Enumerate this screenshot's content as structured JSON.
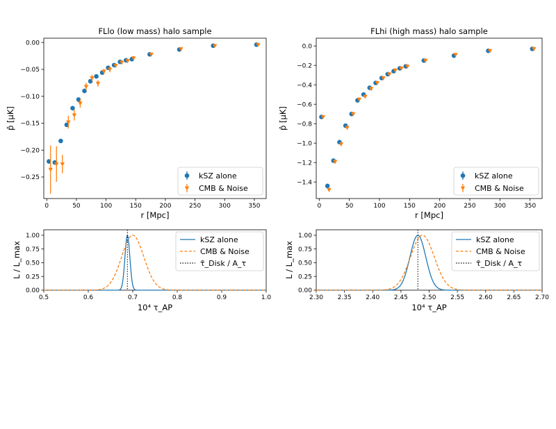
{
  "colors": {
    "blue": "#1f77b4",
    "orange": "#ff7f0e",
    "axis": "#000000"
  },
  "chart_data": [
    {
      "id": "top_left",
      "type": "scatter",
      "title": "FLlo (low mass) halo sample",
      "xlabel": "r [Mpc]",
      "ylabel": "p̂ [μK]",
      "xlim": [
        -5,
        370
      ],
      "ylim": [
        -0.29,
        0.008
      ],
      "xticks": [
        0,
        50,
        100,
        150,
        200,
        250,
        300,
        350
      ],
      "yticks": [
        0.0,
        -0.05,
        -0.1,
        -0.15,
        -0.2,
        -0.25
      ],
      "ytick_labels": [
        "0.00",
        "−0.05",
        "−0.10",
        "−0.15",
        "−0.20",
        "−0.25"
      ],
      "legend": {
        "position": "lower-right",
        "entries": [
          "kSZ alone",
          "CMB & Noise"
        ]
      },
      "series": [
        {
          "name": "kSZ alone",
          "color": "#1f77b4",
          "marker": "circle",
          "x": [
            5,
            15,
            25,
            35,
            45,
            55,
            65,
            75,
            85,
            95,
            105,
            115,
            125,
            135,
            145,
            175,
            225,
            282,
            355
          ],
          "y": [
            -0.221,
            -0.223,
            -0.183,
            -0.153,
            -0.122,
            -0.106,
            -0.09,
            -0.072,
            -0.063,
            -0.056,
            -0.047,
            -0.042,
            -0.036,
            -0.033,
            -0.031,
            -0.022,
            -0.013,
            -0.006,
            -0.004
          ],
          "err": [
            0.002,
            0.002,
            0.002,
            0.002,
            0.002,
            0.002,
            0.002,
            0.002,
            0.002,
            0.002,
            0.002,
            0.002,
            0.002,
            0.002,
            0.002,
            0.002,
            0.002,
            0.002,
            0.002
          ]
        },
        {
          "name": "CMB & Noise",
          "color": "#ff7f0e",
          "marker": "triangle-down",
          "x": [
            5,
            15,
            25,
            35,
            45,
            55,
            65,
            75,
            85,
            95,
            105,
            115,
            125,
            135,
            145,
            175,
            225,
            282,
            355
          ],
          "y": [
            -0.236,
            -0.226,
            -0.226,
            -0.148,
            -0.135,
            -0.113,
            -0.082,
            -0.066,
            -0.076,
            -0.054,
            -0.05,
            -0.043,
            -0.037,
            -0.034,
            -0.029,
            -0.022,
            -0.012,
            -0.006,
            -0.004
          ],
          "err": [
            0.045,
            0.033,
            0.017,
            0.012,
            0.01,
            0.008,
            0.007,
            0.006,
            0.006,
            0.005,
            0.005,
            0.004,
            0.004,
            0.004,
            0.004,
            0.003,
            0.003,
            0.002,
            0.002
          ]
        }
      ]
    },
    {
      "id": "top_right",
      "type": "scatter",
      "title": "FLhi (high mass) halo sample",
      "xlabel": "r [Mpc]",
      "ylabel": "p̂ [μK]",
      "xlim": [
        -5,
        370
      ],
      "ylim": [
        -1.57,
        0.08
      ],
      "xticks": [
        0,
        50,
        100,
        150,
        200,
        250,
        300,
        350
      ],
      "yticks": [
        0.0,
        -0.2,
        -0.4,
        -0.6,
        -0.8,
        -1.0,
        -1.2,
        -1.4
      ],
      "ytick_labels": [
        "0.0",
        "−0.2",
        "−0.4",
        "−0.6",
        "−0.8",
        "−1.0",
        "−1.2",
        "−1.4"
      ],
      "legend": {
        "position": "lower-right",
        "entries": [
          "kSZ alone",
          "CMB & Noise"
        ]
      },
      "series": [
        {
          "name": "kSZ alone",
          "color": "#1f77b4",
          "marker": "circle",
          "x": [
            5,
            15,
            25,
            35,
            45,
            55,
            65,
            75,
            85,
            95,
            105,
            115,
            125,
            135,
            145,
            175,
            225,
            282,
            355
          ],
          "y": [
            -0.73,
            -1.44,
            -1.18,
            -0.99,
            -0.82,
            -0.7,
            -0.56,
            -0.5,
            -0.43,
            -0.38,
            -0.33,
            -0.29,
            -0.26,
            -0.23,
            -0.21,
            -0.15,
            -0.1,
            -0.05,
            -0.03
          ],
          "err": [
            0.01,
            0.01,
            0.01,
            0.01,
            0.01,
            0.01,
            0.01,
            0.01,
            0.01,
            0.01,
            0.01,
            0.01,
            0.01,
            0.01,
            0.01,
            0.01,
            0.01,
            0.01,
            0.01
          ]
        },
        {
          "name": "CMB & Noise",
          "color": "#ff7f0e",
          "marker": "triangle-down",
          "x": [
            5,
            15,
            25,
            35,
            45,
            55,
            65,
            75,
            85,
            95,
            105,
            115,
            125,
            135,
            145,
            175,
            225,
            282,
            355
          ],
          "y": [
            -0.73,
            -1.48,
            -1.19,
            -1.01,
            -0.84,
            -0.7,
            -0.55,
            -0.52,
            -0.44,
            -0.38,
            -0.33,
            -0.29,
            -0.25,
            -0.23,
            -0.21,
            -0.15,
            -0.09,
            -0.05,
            -0.03
          ],
          "err": [
            0.02,
            0.02,
            0.02,
            0.02,
            0.02,
            0.02,
            0.02,
            0.02,
            0.02,
            0.02,
            0.02,
            0.02,
            0.02,
            0.02,
            0.02,
            0.02,
            0.02,
            0.02,
            0.02
          ]
        }
      ]
    },
    {
      "id": "bottom_left",
      "type": "line",
      "xlabel": "10⁴ τ_AP",
      "ylabel": "L / L_max",
      "xlim": [
        0.5,
        1.0
      ],
      "ylim": [
        0,
        1.1
      ],
      "xticks": [
        0.5,
        0.6,
        0.7,
        0.8,
        0.9,
        1.0
      ],
      "xtick_labels": [
        "0.5",
        "0.6",
        "0.7",
        "0.8",
        "0.9",
        "1.0"
      ],
      "yticks": [
        0.0,
        0.25,
        0.5,
        0.75,
        1.0
      ],
      "ytick_labels": [
        "0.00",
        "0.25",
        "0.50",
        "0.75",
        "1.00"
      ],
      "legend": {
        "position": "top-right",
        "entries": [
          "kSZ alone",
          "CMB & Noise",
          "τ̄_Disk / A_τ"
        ]
      },
      "series": [
        {
          "name": "kSZ alone",
          "color": "#1f77b4",
          "style": "solid",
          "mean": 0.688,
          "sigma": 0.0055
        },
        {
          "name": "CMB & Noise",
          "color": "#ff7f0e",
          "style": "dashed",
          "mean": 0.7,
          "sigma": 0.025
        }
      ],
      "vline": {
        "x": 0.688,
        "style": "dotted",
        "color": "#000000"
      }
    },
    {
      "id": "bottom_right",
      "type": "line",
      "xlabel": "10⁴ τ_AP",
      "ylabel": "L / L_max",
      "xlim": [
        2.3,
        2.7
      ],
      "ylim": [
        0,
        1.1
      ],
      "xticks": [
        2.3,
        2.35,
        2.4,
        2.45,
        2.5,
        2.55,
        2.6,
        2.65,
        2.7
      ],
      "xtick_labels": [
        "2.30",
        "2.35",
        "2.40",
        "2.45",
        "2.50",
        "2.55",
        "2.60",
        "2.65",
        "2.70"
      ],
      "yticks": [
        0.0,
        0.25,
        0.5,
        0.75,
        1.0
      ],
      "ytick_labels": [
        "0.00",
        "0.25",
        "0.50",
        "0.75",
        "1.00"
      ],
      "legend": {
        "position": "top-right",
        "entries": [
          "kSZ alone",
          "CMB & Noise",
          "τ̄_Disk / A_τ"
        ]
      },
      "series": [
        {
          "name": "kSZ alone",
          "color": "#1f77b4",
          "style": "solid",
          "mean": 2.48,
          "sigma": 0.014
        },
        {
          "name": "CMB & Noise",
          "color": "#ff7f0e",
          "style": "dashed",
          "mean": 2.488,
          "sigma": 0.021
        }
      ],
      "vline": {
        "x": 2.48,
        "style": "dotted",
        "color": "#000000"
      }
    }
  ]
}
